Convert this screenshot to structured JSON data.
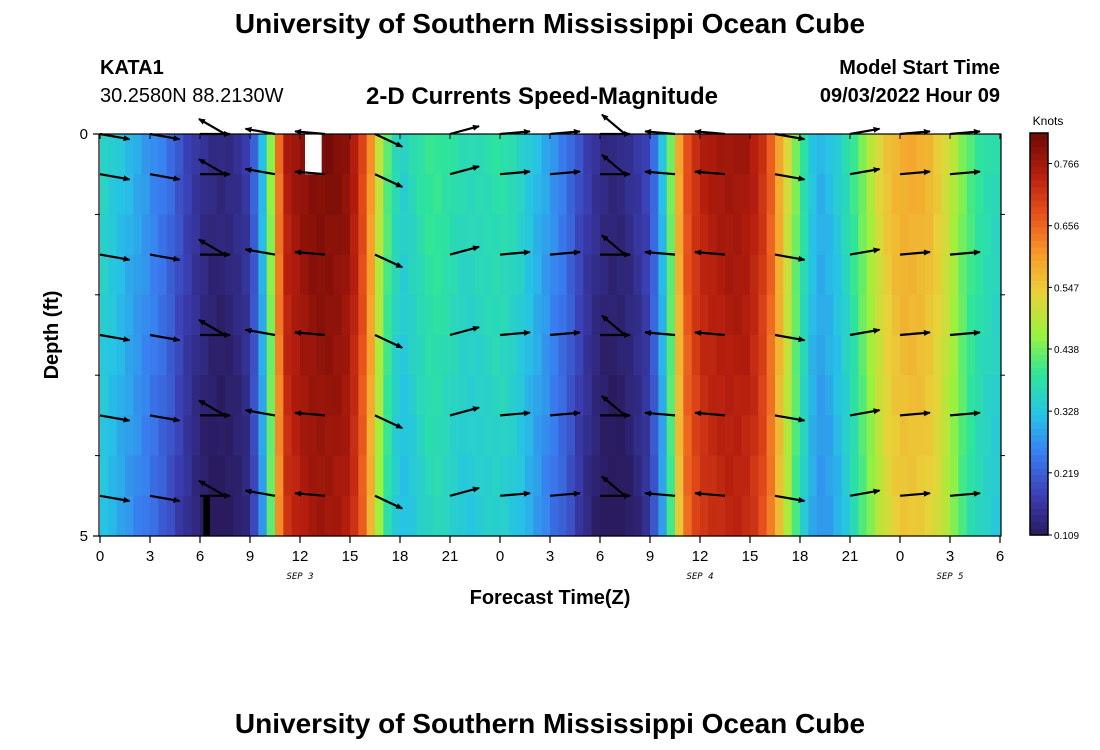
{
  "page": {
    "title": "University of Southern Mississippi Ocean Cube",
    "footer_title": "University of Southern Mississippi Ocean Cube",
    "station": {
      "id": "KATA1",
      "coords": "30.2580N  88.2130W"
    },
    "model_start": {
      "label": "Model Start Time",
      "value": "09/03/2022 Hour 09"
    }
  },
  "chart_data": {
    "type": "heatmap",
    "title": "2-D Currents Speed-Magnitude",
    "xlabel": "Forecast Time(Z)",
    "ylabel": "Depth (ft)",
    "xlim": [
      0,
      54
    ],
    "ylim": [
      0,
      5
    ],
    "x_ticks": [
      {
        "x": 0,
        "label": "0"
      },
      {
        "x": 3,
        "label": "3"
      },
      {
        "x": 6,
        "label": "6"
      },
      {
        "x": 9,
        "label": "9"
      },
      {
        "x": 12,
        "label": "12"
      },
      {
        "x": 15,
        "label": "15"
      },
      {
        "x": 18,
        "label": "18"
      },
      {
        "x": 21,
        "label": "21"
      },
      {
        "x": 24,
        "label": "0"
      },
      {
        "x": 27,
        "label": "3"
      },
      {
        "x": 30,
        "label": "6"
      },
      {
        "x": 33,
        "label": "9"
      },
      {
        "x": 36,
        "label": "12"
      },
      {
        "x": 39,
        "label": "15"
      },
      {
        "x": 42,
        "label": "18"
      },
      {
        "x": 45,
        "label": "21"
      },
      {
        "x": 48,
        "label": "0"
      },
      {
        "x": 51,
        "label": "3"
      },
      {
        "x": 54,
        "label": "6"
      }
    ],
    "date_labels": [
      {
        "x": 12,
        "label": "SEP 3"
      },
      {
        "x": 36,
        "label": "SEP 4"
      },
      {
        "x": 51,
        "label": "SEP 5"
      }
    ],
    "y_ticks": [
      {
        "y": 0,
        "label": "0"
      },
      {
        "y": 5,
        "label": "5"
      }
    ],
    "y_minor_ticks": [
      1,
      2,
      3,
      4
    ],
    "colorbar": {
      "label": "Knots",
      "min": 0.109,
      "max": 0.82,
      "ticks": [
        "0.109",
        "0.219",
        "0.328",
        "0.438",
        "0.547",
        "0.656",
        "0.766"
      ],
      "colors": [
        "#2a1b5e",
        "#3b3fb4",
        "#3a7bf0",
        "#26c3e6",
        "#2ee59a",
        "#9af23c",
        "#e8d23a",
        "#f89a2a",
        "#e8501c",
        "#b51e0e",
        "#6e0a06"
      ]
    },
    "speed_profile": {
      "hours": [
        0,
        1,
        2,
        3,
        4,
        5,
        6,
        7,
        8,
        9,
        10,
        11,
        12,
        13,
        14,
        15,
        16,
        17,
        18,
        19,
        20,
        21,
        22,
        23,
        24,
        25,
        26,
        27,
        28,
        29,
        30,
        31,
        32,
        33,
        34,
        35,
        36,
        37,
        38,
        39,
        40,
        41,
        42,
        43,
        44,
        45,
        46,
        47,
        48,
        49,
        50,
        51,
        52,
        53,
        54
      ],
      "speed": [
        0.36,
        0.33,
        0.3,
        0.27,
        0.24,
        0.19,
        0.15,
        0.13,
        0.14,
        0.17,
        0.36,
        0.74,
        0.78,
        0.8,
        0.8,
        0.78,
        0.66,
        0.44,
        0.34,
        0.37,
        0.4,
        0.38,
        0.36,
        0.37,
        0.38,
        0.36,
        0.32,
        0.28,
        0.24,
        0.18,
        0.14,
        0.13,
        0.15,
        0.19,
        0.36,
        0.66,
        0.74,
        0.76,
        0.77,
        0.76,
        0.7,
        0.55,
        0.4,
        0.3,
        0.32,
        0.38,
        0.46,
        0.54,
        0.58,
        0.58,
        0.56,
        0.5,
        0.42,
        0.38,
        0.36
      ]
    },
    "depth_rows": [
      0,
      0.5,
      1.5,
      2.5,
      3.5,
      4.5
    ],
    "vectors": [
      {
        "t": 0,
        "dir": 10
      },
      {
        "t": 3,
        "dir": 10
      },
      {
        "t": 6,
        "dir": 0
      },
      {
        "t": 7.5,
        "dir": -150
      },
      {
        "t": 10.5,
        "dir": -170
      },
      {
        "t": 13.5,
        "dir": -175
      },
      {
        "t": 16.5,
        "dir": 25
      },
      {
        "t": 21,
        "dir": -15
      },
      {
        "t": 24,
        "dir": -5
      },
      {
        "t": 27,
        "dir": -5
      },
      {
        "t": 30,
        "dir": 0
      },
      {
        "t": 31.5,
        "dir": -140
      },
      {
        "t": 34.5,
        "dir": -175
      },
      {
        "t": 37.5,
        "dir": -175
      },
      {
        "t": 40.5,
        "dir": 10
      },
      {
        "t": 45,
        "dir": -10
      },
      {
        "t": 48,
        "dir": -5
      },
      {
        "t": 51,
        "dir": -5
      }
    ],
    "missing_cells": [
      {
        "t_from": 12.3,
        "t_to": 13.3,
        "depth_from": 0,
        "depth_to": 0.5,
        "color": "#ffffff"
      },
      {
        "t_from": 6.2,
        "t_to": 6.6,
        "depth_from": 4.5,
        "depth_to": 5,
        "color": "#000000"
      }
    ]
  }
}
